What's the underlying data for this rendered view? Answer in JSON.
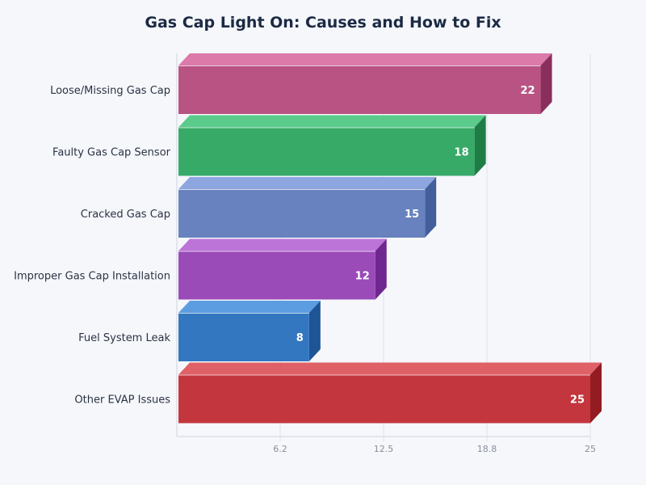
{
  "chart_data": {
    "type": "bar",
    "orientation": "horizontal",
    "style": "3d",
    "title": "Gas Cap Light On: Causes and How to Fix",
    "xlabel": "",
    "ylabel": "",
    "xlim": [
      0,
      25
    ],
    "x_ticks": [
      "6.2",
      "12.5",
      "18.8",
      "25"
    ],
    "x_tick_values": [
      6.25,
      12.5,
      18.75,
      25
    ],
    "grid": true,
    "categories": [
      "Loose/Missing Gas Cap",
      "Faulty Gas Cap Sensor",
      "Cracked Gas Cap",
      "Improper Gas Cap Installation",
      "Fuel System Leak",
      "Other EVAP Issues"
    ],
    "values": [
      22,
      18,
      15,
      12,
      8,
      25
    ],
    "colors": [
      {
        "front": "#b85383",
        "top": "#dc7aaa",
        "side": "#8a2f5c"
      },
      {
        "front": "#37aa68",
        "top": "#5acb8a",
        "side": "#1d7d44"
      },
      {
        "front": "#6782bf",
        "top": "#8ea6df",
        "side": "#435f9b"
      },
      {
        "front": "#9a4bb8",
        "top": "#bd74d9",
        "side": "#6f2690"
      },
      {
        "front": "#3377c0",
        "top": "#5b9de0",
        "side": "#1d5596"
      },
      {
        "front": "#c3363e",
        "top": "#e06068",
        "side": "#931c22"
      }
    ]
  }
}
